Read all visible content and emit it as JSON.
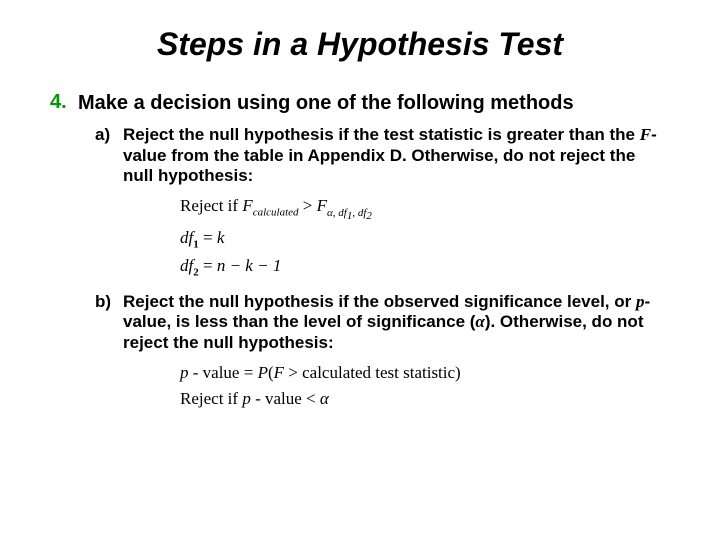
{
  "title": "Steps in a Hypothesis Test",
  "step": {
    "number": "4.",
    "text": "Make a decision using one of the following methods"
  },
  "items": {
    "a": {
      "letter": "a)",
      "text_pre": "Reject the null hypothesis if the test statistic is greater than the ",
      "text_fvalue": "F",
      "text_post": "-value from the table in Appendix D. Otherwise, do not reject the null hypothesis:",
      "math": {
        "line1_label": "Reject if ",
        "line1_Fcalc": "F",
        "line1_calc_sub": "calculated",
        "line1_gt": " > ",
        "line1_Falpha": "F",
        "line1_alpha_sub": "α, df",
        "line1_sub1": "1",
        "line1_sub_comma": ", df",
        "line1_sub2": "2",
        "line2_df": "df",
        "line2_s1": "1",
        "line2_eq": " = ",
        "line2_k": "k",
        "line3_df": "df",
        "line3_s2": "2",
        "line3_eq": " = ",
        "line3_rest": "n − k − 1"
      }
    },
    "b": {
      "letter": "b)",
      "text_pre": "Reject the null hypothesis if the observed significance level, or ",
      "text_p": "p",
      "text_mid": "-value, is less than the level of significance (",
      "text_alpha": "α",
      "text_post": "). Otherwise, do not reject the null hypothesis:",
      "math": {
        "line1_p": "p",
        "line1_value": " - value = ",
        "line1_P": "P",
        "line1_paren": "(",
        "line1_F": "F",
        "line1_gt": " > ",
        "line1_rest": "calculated test statistic)",
        "line2_label": "Reject if ",
        "line2_p": "p",
        "line2_value": " - value < ",
        "line2_alpha": "α"
      }
    }
  }
}
